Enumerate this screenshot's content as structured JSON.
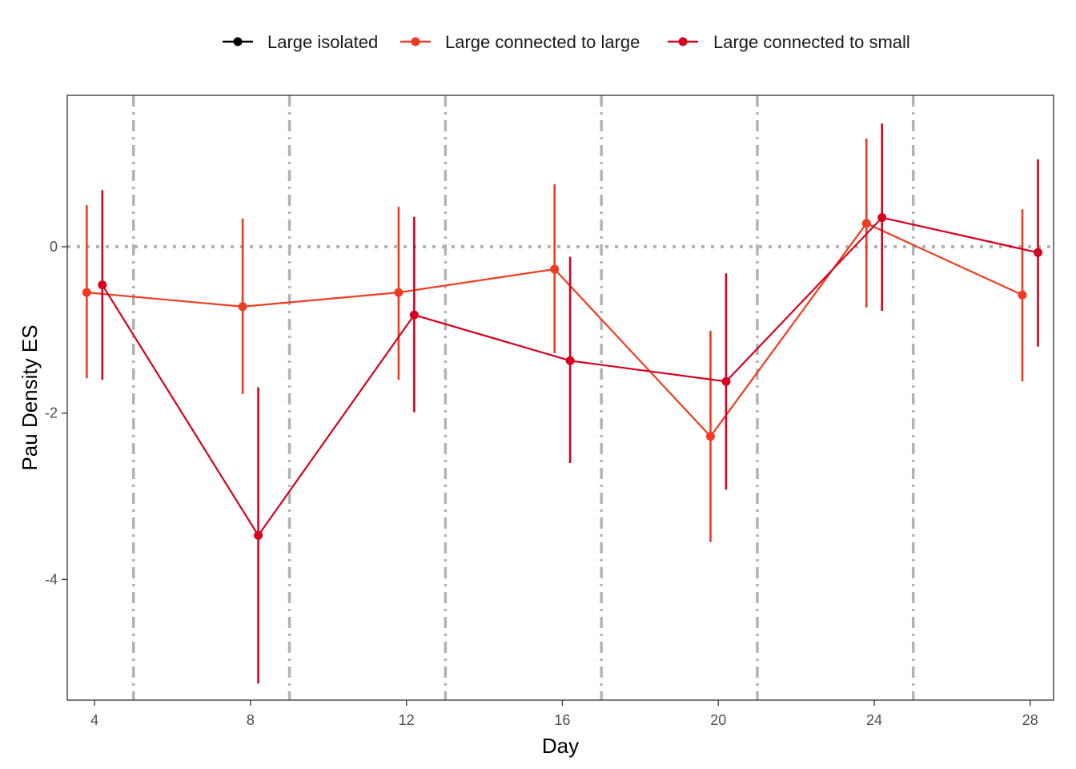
{
  "chart_data": {
    "type": "line",
    "title": "",
    "xlabel": "Day",
    "ylabel": "Pau Density ES",
    "xlim": [
      3.3,
      28.6
    ],
    "ylim": [
      -5.45,
      1.82
    ],
    "x_ticks": [
      4,
      8,
      12,
      16,
      20,
      24,
      28
    ],
    "y_ticks": [
      0,
      -2,
      -4
    ],
    "y_tick_labels": [
      "0",
      "-2",
      "-4"
    ],
    "grid": false,
    "reference_lines": {
      "horizontal_y": 0,
      "vertical_x": [
        5,
        9,
        13,
        17,
        21,
        25
      ]
    },
    "legend": {
      "position": "top"
    },
    "series": [
      {
        "name": "Large isolated",
        "color": "#000000",
        "x": [],
        "y": [],
        "lower": [],
        "upper": []
      },
      {
        "name": "Large connected to large",
        "color": "#F03B20",
        "x": [
          4,
          8,
          12,
          16,
          20,
          24,
          28
        ],
        "y": [
          -0.55,
          -0.72,
          -0.55,
          -0.27,
          -2.28,
          0.28,
          -0.58
        ],
        "lower": [
          -1.58,
          -1.77,
          -1.6,
          -1.28,
          -3.55,
          -0.73,
          -1.62
        ],
        "upper": [
          0.5,
          0.34,
          0.48,
          0.75,
          -1.01,
          1.3,
          0.45
        ]
      },
      {
        "name": "Large connected to small",
        "color": "#D7001F",
        "x": [
          4,
          8,
          12,
          16,
          20,
          24,
          28
        ],
        "y": [
          -0.46,
          -3.47,
          -0.82,
          -1.37,
          -1.62,
          0.35,
          -0.07
        ],
        "lower": [
          -1.6,
          -5.25,
          -1.99,
          -2.6,
          -2.92,
          -0.77,
          -1.2
        ],
        "upper": [
          0.68,
          -1.69,
          0.36,
          -0.12,
          -0.32,
          1.48,
          1.05
        ]
      }
    ]
  }
}
